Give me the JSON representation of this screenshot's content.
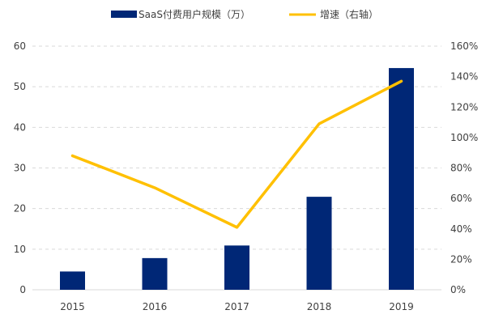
{
  "chart_data": {
    "type": "bar+line",
    "categories": [
      "2015",
      "2016",
      "2017",
      "2018",
      "2019"
    ],
    "series": [
      {
        "name": "SaaS付费用户规模（万）",
        "type": "bar",
        "axis": "left",
        "color": "#002776",
        "values": [
          4.5,
          7.8,
          10.9,
          22.9,
          54.6
        ]
      },
      {
        "name": "增速（右轴）",
        "type": "line",
        "axis": "right",
        "color": "#FFC000",
        "values": [
          88,
          67,
          41,
          109,
          137
        ]
      }
    ],
    "left_axis": {
      "range": [
        0,
        60
      ],
      "ticks": [
        "0",
        "10",
        "20",
        "30",
        "40",
        "50",
        "60"
      ]
    },
    "right_axis": {
      "range": [
        0,
        160
      ],
      "ticks": [
        "0%",
        "20%",
        "40%",
        "60%",
        "80%",
        "100%",
        "120%",
        "140%",
        "160%"
      ]
    },
    "grid": true,
    "legend": "top"
  }
}
